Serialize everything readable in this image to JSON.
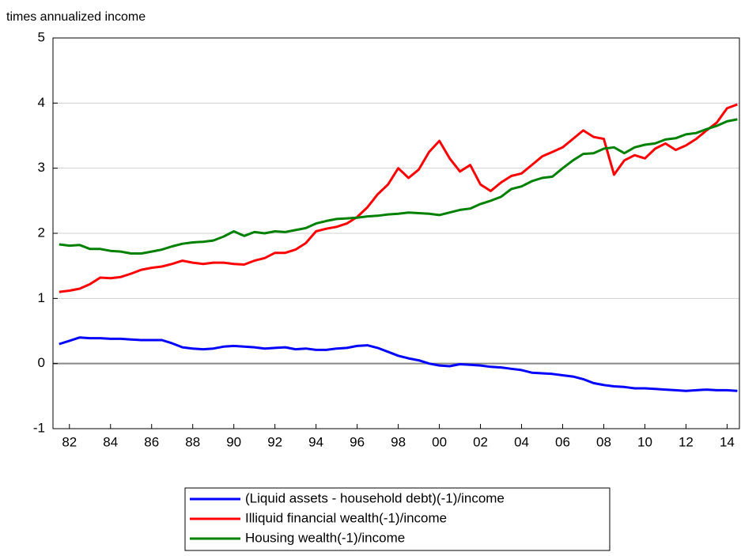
{
  "chart_data": {
    "type": "line",
    "title": "times annualized income",
    "x": [
      1982,
      1982.5,
      1983,
      1983.5,
      1984,
      1984.5,
      1985,
      1985.5,
      1986,
      1986.5,
      1987,
      1987.5,
      1988,
      1988.5,
      1989,
      1989.5,
      1990,
      1990.5,
      1991,
      1991.5,
      1992,
      1992.5,
      1993,
      1993.5,
      1994,
      1994.5,
      1995,
      1995.5,
      1996,
      1996.5,
      1997,
      1997.5,
      1998,
      1998.5,
      1999,
      1999.5,
      2000,
      2000.5,
      2001,
      2001.5,
      2002,
      2002.5,
      2003,
      2003.5,
      2004,
      2004.5,
      2005,
      2005.5,
      2006,
      2006.5,
      2007,
      2007.5,
      2008,
      2008.5,
      2009,
      2009.5,
      2010,
      2010.5,
      2011,
      2011.5,
      2012,
      2012.5,
      2013,
      2013.5,
      2014,
      2014.5,
      2015
    ],
    "series": [
      {
        "name": "(Liquid assets - household debt)(-1)/income",
        "color": "#0000ff",
        "values": [
          0.3,
          0.35,
          0.4,
          0.39,
          0.39,
          0.38,
          0.38,
          0.37,
          0.36,
          0.36,
          0.36,
          0.31,
          0.25,
          0.23,
          0.22,
          0.23,
          0.26,
          0.27,
          0.26,
          0.25,
          0.23,
          0.24,
          0.25,
          0.22,
          0.23,
          0.21,
          0.21,
          0.23,
          0.24,
          0.27,
          0.28,
          0.24,
          0.18,
          0.12,
          0.08,
          0.05,
          0,
          -0.03,
          -0.04,
          -0.01,
          -0.02,
          -0.03,
          -0.05,
          -0.06,
          -0.08,
          -0.1,
          -0.14,
          -0.15,
          -0.16,
          -0.18,
          -0.2,
          -0.24,
          -0.3,
          -0.33,
          -0.35,
          -0.36,
          -0.38,
          -0.38,
          -0.39,
          -0.4,
          -0.41,
          -0.42,
          -0.41,
          -0.4,
          -0.41,
          -0.41,
          -0.42
        ]
      },
      {
        "name": "Illiquid financial wealth(-1)/income",
        "color": "#ff0000",
        "values": [
          1.1,
          1.12,
          1.15,
          1.22,
          1.32,
          1.31,
          1.33,
          1.38,
          1.44,
          1.47,
          1.49,
          1.53,
          1.58,
          1.55,
          1.53,
          1.55,
          1.55,
          1.53,
          1.52,
          1.58,
          1.62,
          1.7,
          1.7,
          1.75,
          1.85,
          2.03,
          2.07,
          2.1,
          2.15,
          2.25,
          2.4,
          2.6,
          2.75,
          3.0,
          2.85,
          2.98,
          3.25,
          3.42,
          3.15,
          2.95,
          3.05,
          2.75,
          2.65,
          2.78,
          2.88,
          2.92,
          3.05,
          3.18,
          3.25,
          3.32,
          3.45,
          3.58,
          3.48,
          3.45,
          2.9,
          3.12,
          3.2,
          3.15,
          3.3,
          3.38,
          3.28,
          3.35,
          3.45,
          3.58,
          3.7,
          3.92,
          3.98
        ]
      },
      {
        "name": "Housing wealth(-1)/income",
        "color": "#008000",
        "values": [
          1.83,
          1.81,
          1.82,
          1.76,
          1.76,
          1.73,
          1.72,
          1.69,
          1.69,
          1.72,
          1.75,
          1.8,
          1.84,
          1.86,
          1.87,
          1.89,
          1.95,
          2.03,
          1.96,
          2.02,
          2.0,
          2.03,
          2.02,
          2.05,
          2.08,
          2.15,
          2.19,
          2.22,
          2.23,
          2.24,
          2.26,
          2.27,
          2.29,
          2.3,
          2.32,
          2.31,
          2.3,
          2.28,
          2.32,
          2.36,
          2.38,
          2.45,
          2.5,
          2.56,
          2.68,
          2.72,
          2.8,
          2.85,
          2.87,
          3.0,
          3.12,
          3.22,
          3.23,
          3.3,
          3.32,
          3.23,
          3.32,
          3.36,
          3.38,
          3.44,
          3.46,
          3.52,
          3.54,
          3.6,
          3.65,
          3.72,
          3.75
        ]
      }
    ],
    "xlim": [
      1981.7,
      2015.1
    ],
    "xticks": [
      {
        "value": 1982.5,
        "label": "82"
      },
      {
        "value": 1984.5,
        "label": "84"
      },
      {
        "value": 1986.5,
        "label": "86"
      },
      {
        "value": 1988.5,
        "label": "88"
      },
      {
        "value": 1990.5,
        "label": "90"
      },
      {
        "value": 1992.5,
        "label": "92"
      },
      {
        "value": 1994.5,
        "label": "94"
      },
      {
        "value": 1996.5,
        "label": "96"
      },
      {
        "value": 1998.5,
        "label": "98"
      },
      {
        "value": 2000.5,
        "label": "00"
      },
      {
        "value": 2002.5,
        "label": "02"
      },
      {
        "value": 2004.5,
        "label": "04"
      },
      {
        "value": 2006.5,
        "label": "06"
      },
      {
        "value": 2008.5,
        "label": "08"
      },
      {
        "value": 2010.5,
        "label": "10"
      },
      {
        "value": 2012.5,
        "label": "12"
      },
      {
        "value": 2014.5,
        "label": "14"
      }
    ],
    "ylim": [
      -1,
      5
    ],
    "yticks": [
      -1,
      0,
      1,
      2,
      3,
      4,
      5
    ],
    "grid": true,
    "zero_line": true,
    "legend": "bottom"
  }
}
